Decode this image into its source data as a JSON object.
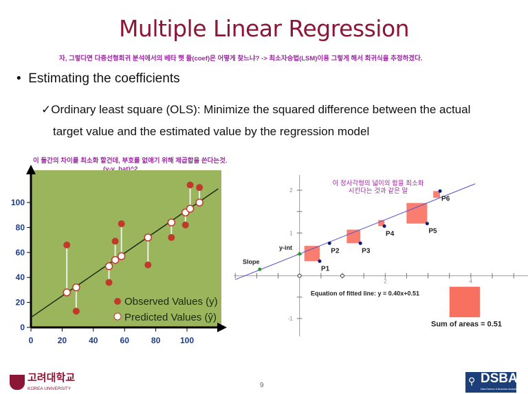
{
  "title": "Multiple Linear Regression",
  "notes": {
    "top": "자, 그렇다면 다중선형회귀 분석에서의 베타 햇 들(coef)은 어떻게 찾느냐? -> 최소자승법(LSM)이용 그렇게 해서 회귀식을 추정하겠다.",
    "left_line1": "이 둘간의 차이를 최소화 할건데, 부호를 없애기 위해 제곱합을 쓴다는것.",
    "left_line2": "(y-y_hat)^2",
    "right": "이 정사각형의 넓이의 합을 최소화 시킨다는 것과 같은 말"
  },
  "bullet": {
    "marker": "•",
    "text": "Estimating the coefficients"
  },
  "sub_bullet": {
    "marker": "✓",
    "line1": "Ordinary least square (OLS): Minimize the squared difference between the actual",
    "line2": "target value and the estimated value by the regression model"
  },
  "footer": {
    "page": "9",
    "left_logo_kr": "고려대학교",
    "left_logo_en": "KOREA UNIVERSITY",
    "right_logo": "DSBA",
    "right_logo_sub": "Data Science & Business Analytics"
  },
  "chart_data": [
    {
      "type": "scatter",
      "background": "#9bb55c",
      "xlim": [
        0,
        120
      ],
      "ylim": [
        0,
        120
      ],
      "x_ticks": [
        "0",
        "20",
        "40",
        "60",
        "80",
        "100"
      ],
      "y_ticks": [
        "0",
        "20",
        "40",
        "60",
        "80",
        "100"
      ],
      "legend": {
        "placement": "bottom-right",
        "entries": [
          "Observed Values (y)",
          "Predicted Values (ŷ)"
        ]
      },
      "line": {
        "x": [
          0,
          120
        ],
        "y": [
          8,
          111
        ]
      },
      "series": [
        {
          "name": "Observed Values (y)",
          "color": "#c0392b",
          "x": [
            23,
            29,
            50,
            54,
            58,
            75,
            90,
            99,
            102,
            108
          ],
          "y": [
            66,
            13,
            36,
            69,
            83,
            50,
            72,
            82,
            114,
            112
          ]
        },
        {
          "name": "Predicted Values (ŷ)",
          "color": "#ffffff",
          "x": [
            23,
            29,
            50,
            54,
            58,
            75,
            90,
            99,
            102,
            108
          ],
          "y": [
            28,
            32,
            49,
            54,
            57,
            72,
            84,
            92,
            95,
            100
          ]
        }
      ]
    },
    {
      "type": "scatter",
      "xlim": [
        -1.5,
        5
      ],
      "ylim": [
        -1.2,
        2.3
      ],
      "x_tick_labels": [
        "2",
        "4"
      ],
      "y_tick_labels": [
        "-1",
        "1",
        "2"
      ],
      "fitted_line": {
        "slope": 0.4,
        "intercept": 0.51
      },
      "points": [
        {
          "label": "P1",
          "x": 0.47,
          "y": 0.34
        },
        {
          "label": "P2",
          "x": 0.7,
          "y": 0.76
        },
        {
          "label": "P3",
          "x": 1.42,
          "y": 0.76
        },
        {
          "label": "P4",
          "x": 1.98,
          "y": 1.16
        },
        {
          "label": "P5",
          "x": 2.98,
          "y": 1.22
        },
        {
          "label": "P6",
          "x": 3.28,
          "y": 1.98
        }
      ],
      "slope_point": {
        "label": "Slope",
        "x": -0.93,
        "y": 0.15
      },
      "yint_point": {
        "label": "y-int",
        "x": 0,
        "y": 0.51
      },
      "equation": "Equation of fitted line: y = 0.40x+0.51",
      "sum_label": "Sum of areas = 0.51",
      "sum_of_areas": 0.51,
      "square_color": "#f87060",
      "line_color": "#5050d0"
    }
  ]
}
